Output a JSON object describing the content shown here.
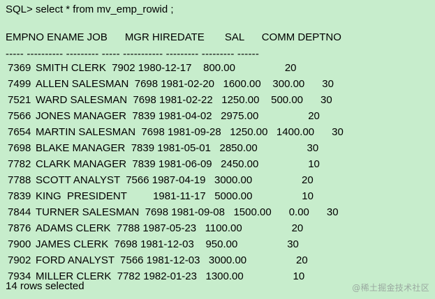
{
  "terminal": {
    "prompt_line": "SQL> select * from mv_emp_rowid ;",
    "header_line": "EMPNO ENAME JOB      MGR HIREDATE       SAL      COMM DEPTNO",
    "separator_line": "----- ---------- --------- ----- ----------- --------- --------- ------",
    "rows": [
      {
        "empno": "7369",
        "rest": "SMITH CLERK  7902 1980-12-17    800.00                 20"
      },
      {
        "empno": "7499",
        "rest": "ALLEN SALESMAN  7698 1981-02-20   1600.00    300.00      30"
      },
      {
        "empno": "7521",
        "rest": "WARD SALESMAN  7698 1981-02-22   1250.00    500.00      30"
      },
      {
        "empno": "7566",
        "rest": "JONES MANAGER  7839 1981-04-02   2975.00                 20"
      },
      {
        "empno": "7654",
        "rest": "MARTIN SALESMAN  7698 1981-09-28   1250.00   1400.00      30"
      },
      {
        "empno": "7698",
        "rest": "BLAKE MANAGER  7839 1981-05-01   2850.00                 30"
      },
      {
        "empno": "7782",
        "rest": "CLARK MANAGER  7839 1981-06-09   2450.00                 10"
      },
      {
        "empno": "7788",
        "rest": "SCOTT ANALYST  7566 1987-04-19   3000.00                 20"
      },
      {
        "empno": "7839",
        "rest": "KING  PRESIDENT         1981-11-17   5000.00                 10"
      },
      {
        "empno": "7844",
        "rest": "TURNER SALESMAN  7698 1981-09-08   1500.00      0.00      30"
      },
      {
        "empno": "7876",
        "rest": "ADAMS CLERK  7788 1987-05-23   1100.00                 20"
      },
      {
        "empno": "7900",
        "rest": "JAMES CLERK  7698 1981-12-03    950.00                 30"
      },
      {
        "empno": "7902",
        "rest": "FORD ANALYST  7566 1981-12-03   3000.00                 20"
      },
      {
        "empno": "7934",
        "rest": "MILLER CLERK  7782 1982-01-23   1300.00                 10"
      }
    ],
    "footer_line": "14 rows selected",
    "watermark": "@稀土掘金技术社区"
  }
}
